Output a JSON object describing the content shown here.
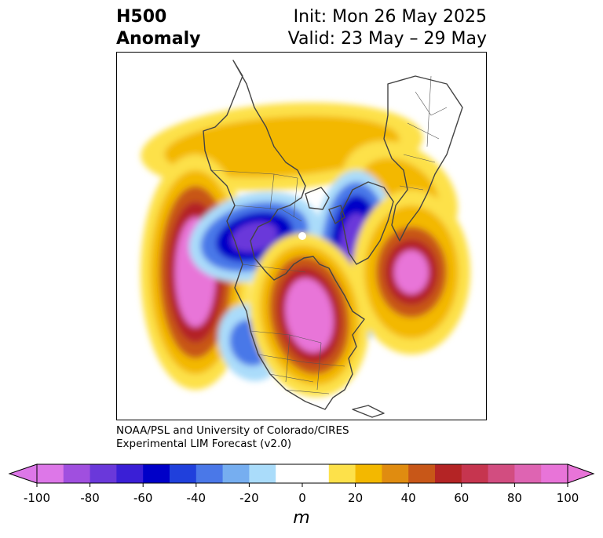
{
  "title": {
    "left_line1": "H500",
    "left_line2": "Anomaly",
    "right_line1": "Init: Mon 26 May 2025",
    "right_line2": "Valid: 23 May – 29 May"
  },
  "credit": {
    "line1": "NOAA/PSL and University of Colorado/CIRES",
    "line2": "Experimental LIM Forecast (v2.0)"
  },
  "colorbar": {
    "units": "m",
    "ticks": [
      "-100",
      "-80",
      "-60",
      "-40",
      "-20",
      "0",
      "20",
      "40",
      "60",
      "80",
      "100"
    ],
    "colors": [
      "#dd77e8",
      "#a04fdf",
      "#6a38da",
      "#3a1fd6",
      "#0000c8",
      "#2040dc",
      "#4a78e8",
      "#76aef0",
      "#aadcfa",
      "#ffffff",
      "#ffffff",
      "#fde14a",
      "#f3b800",
      "#e08c10",
      "#c85718",
      "#b42425",
      "#c6354f",
      "#d24d80",
      "#de64b2",
      "#e874d8"
    ]
  },
  "map": {
    "projection": "north polar stereographic",
    "colors": {
      "neg_light": "#aadcfa",
      "neg_mid": "#4a78e8",
      "neg_strong": "#0000c8",
      "neg_core": "#6a38da",
      "pos_light": "#fde14a",
      "pos_mid": "#f3b800",
      "pos_strong": "#c85718",
      "pos_dark": "#b42425",
      "pos_core": "#e874d8"
    }
  }
}
